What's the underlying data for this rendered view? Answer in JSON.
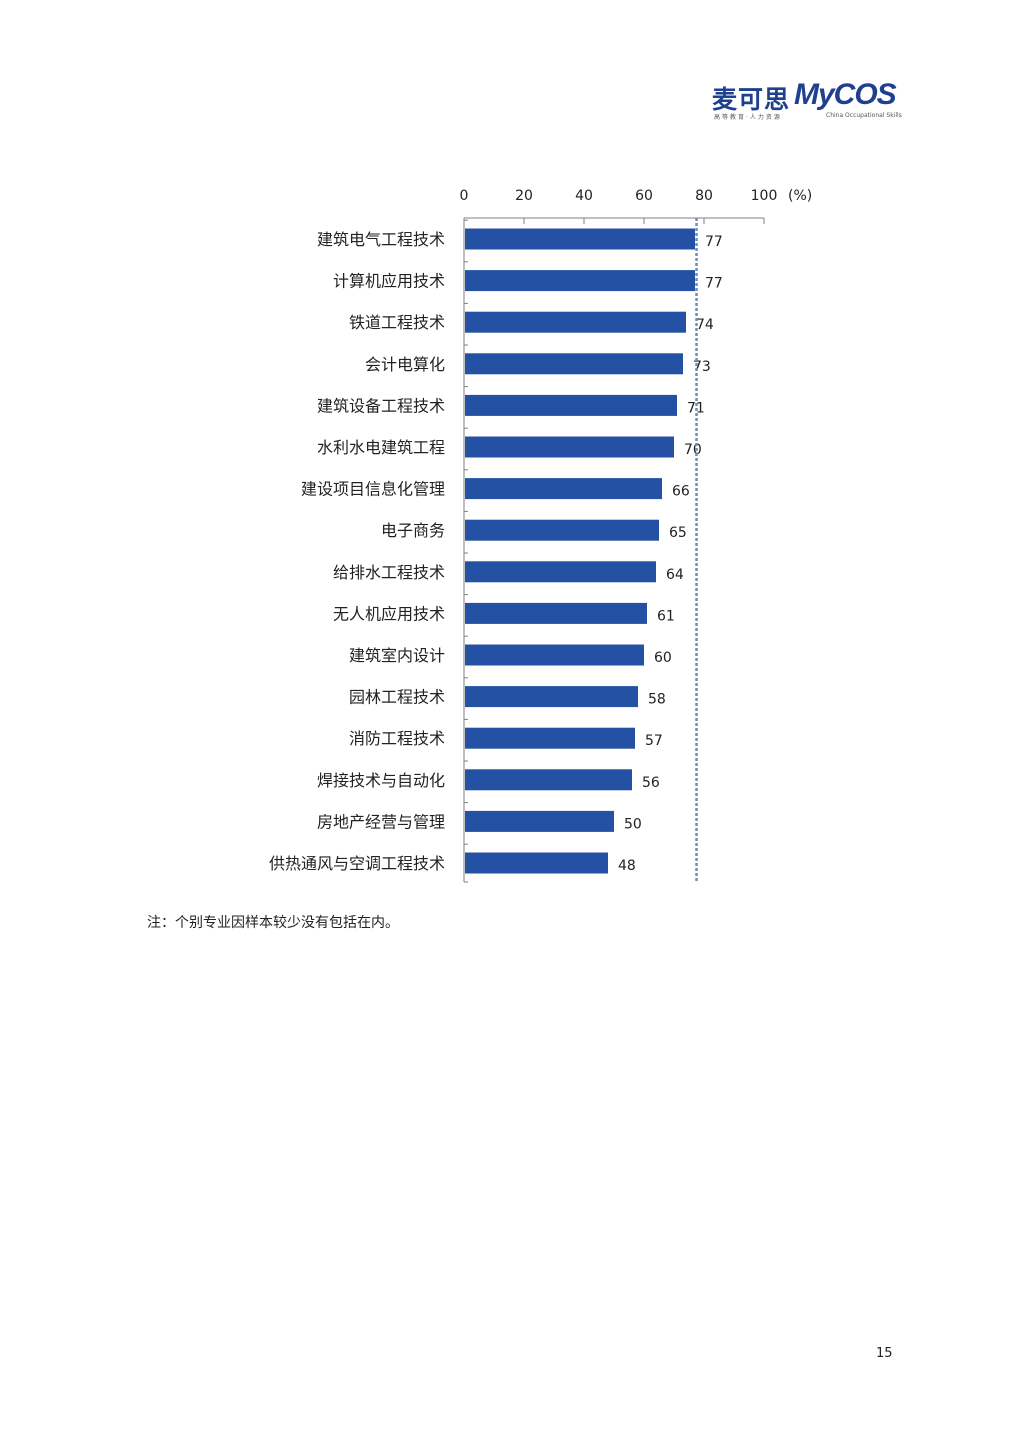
{
  "logo": {
    "cn": "麦可思",
    "en": "MyCOS",
    "sub_cn": "高等教育·人力资源",
    "sub_en": "China Occupational Skills"
  },
  "chart_data": {
    "type": "bar",
    "orientation": "horizontal",
    "categories": [
      "建筑电气工程技术",
      "计算机应用技术",
      "铁道工程技术",
      "会计电算化",
      "建筑设备工程技术",
      "水利水电建筑工程",
      "建设项目信息化管理",
      "电子商务",
      "给排水工程技术",
      "无人机应用技术",
      "建筑室内设计",
      "园林工程技术",
      "消防工程技术",
      "焊接技术与自动化",
      "房地产经营与管理",
      "供热通风与空调工程技术"
    ],
    "values": [
      77,
      77,
      74,
      73,
      71,
      70,
      66,
      65,
      64,
      61,
      60,
      58,
      57,
      56,
      50,
      48
    ],
    "x_ticks": [
      0,
      20,
      40,
      60,
      80,
      100
    ],
    "xlim": [
      0,
      100
    ],
    "unit_label": "(%)",
    "reference_line": 77,
    "axis_position": "top",
    "grid": false,
    "bar_color": "#2451a4",
    "reference_color": "#6b8fb8"
  },
  "note": "注：个别专业因样本较少没有包括在内。",
  "page_number": "15"
}
